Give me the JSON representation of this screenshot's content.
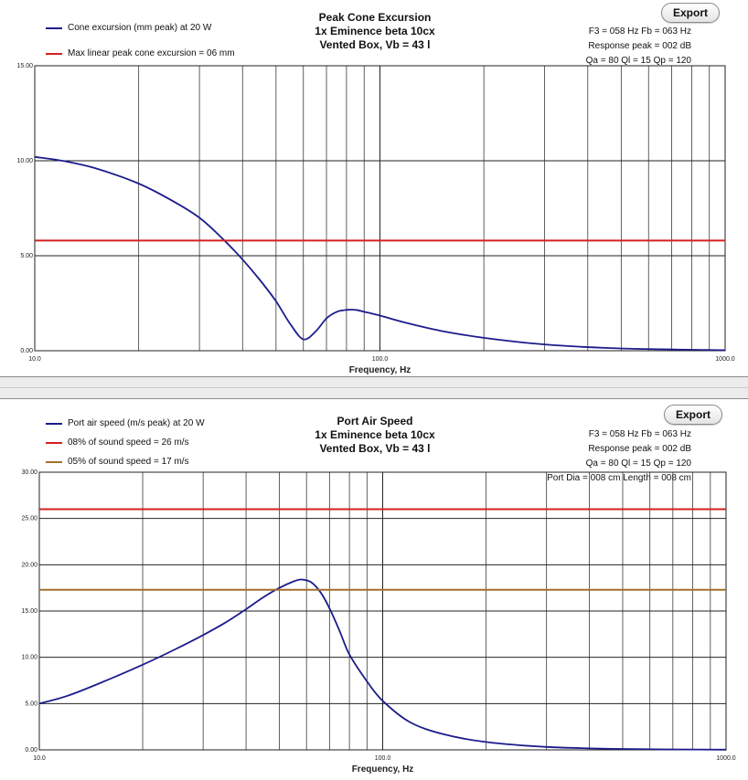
{
  "panels": [
    {
      "export_label": "Export",
      "legend": [
        {
          "text": "Cone excursion (mm peak) at 20 W",
          "color": "#1c1c8c"
        },
        {
          "text": "Max linear peak cone excursion = 06 mm",
          "color": "#d42020"
        }
      ],
      "titles": [
        "Peak Cone Excursion",
        "1x Eminence beta 10cx",
        "Vented Box, Vb = 43 l"
      ],
      "info": [
        "F3 = 058 Hz  Fb = 063 Hz",
        "Response peak = 002 dB",
        "Qa = 80  Ql = 15  Qp = 120"
      ],
      "xlabel": "Frequency, Hz"
    },
    {
      "export_label": "Export",
      "legend": [
        {
          "text": "Port air speed (m/s peak) at 20 W",
          "color": "#1c1c8c"
        },
        {
          "text": "08% of sound speed = 26 m/s",
          "color": "#d42020"
        },
        {
          "text": "05% of sound speed = 17 m/s",
          "color": "#a0702a"
        }
      ],
      "titles": [
        "Port Air Speed",
        "1x Eminence beta 10cx",
        "Vented Box, Vb = 43 l"
      ],
      "info": [
        "F3 = 058 Hz  Fb = 063 Hz",
        "Response peak = 002 dB",
        "Qa = 80  Ql = 15  Qp = 120",
        "Port Dia = 008 cm  Length = 008 cm"
      ],
      "xlabel": "Frequency, Hz"
    }
  ],
  "chart_data": [
    {
      "type": "line",
      "title": "Peak Cone Excursion",
      "xlabel": "Frequency, Hz",
      "ylabel": "",
      "x_scale": "log",
      "xlim": [
        10,
        1000
      ],
      "ylim": [
        0,
        15
      ],
      "x_ticks": [
        "10.0",
        "100.0",
        "1000.0"
      ],
      "y_ticks": [
        "0.00",
        "5.00",
        "10.00",
        "15.00"
      ],
      "grid": true,
      "legend_position": "top-left",
      "series": [
        {
          "name": "Cone excursion (mm peak) at 20 W",
          "color": "#1c1c8c",
          "x": [
            10,
            12,
            15,
            20,
            25,
            30,
            35,
            40,
            45,
            50,
            55,
            60,
            65,
            70,
            75,
            80,
            85,
            90,
            100,
            120,
            150,
            200,
            300,
            500,
            1000
          ],
          "y": [
            10.2,
            10.0,
            9.6,
            8.8,
            7.9,
            7.0,
            5.9,
            4.8,
            3.7,
            2.6,
            1.4,
            0.6,
            1.0,
            1.7,
            2.05,
            2.15,
            2.15,
            2.05,
            1.85,
            1.45,
            1.05,
            0.68,
            0.33,
            0.12,
            0.03
          ]
        },
        {
          "name": "Max linear peak cone excursion = 06 mm",
          "color": "#d42020",
          "x": [
            10,
            1000
          ],
          "y": [
            5.8,
            5.8
          ]
        }
      ]
    },
    {
      "type": "line",
      "title": "Port Air Speed",
      "xlabel": "Frequency, Hz",
      "ylabel": "",
      "x_scale": "log",
      "xlim": [
        10,
        1000
      ],
      "ylim": [
        0,
        30
      ],
      "x_ticks": [
        "10.0",
        "100.0",
        "1000.0"
      ],
      "y_ticks": [
        "0.00",
        "5.00",
        "10.00",
        "15.00",
        "20.00",
        "25.00",
        "30.00"
      ],
      "grid": true,
      "legend_position": "top-left",
      "series": [
        {
          "name": "Port air speed (m/s peak) at 20 W",
          "color": "#1c1c8c",
          "x": [
            10,
            12,
            15,
            20,
            25,
            30,
            35,
            40,
            45,
            50,
            55,
            58,
            62,
            66,
            70,
            75,
            80,
            90,
            100,
            120,
            150,
            200,
            300,
            500,
            1000
          ],
          "y": [
            5.0,
            5.8,
            7.2,
            9.2,
            10.9,
            12.4,
            13.8,
            15.2,
            16.5,
            17.5,
            18.2,
            18.4,
            18.1,
            17.0,
            15.3,
            12.8,
            10.3,
            7.4,
            5.3,
            3.0,
            1.7,
            0.85,
            0.32,
            0.1,
            0.02
          ]
        },
        {
          "name": "08% of sound speed = 26 m/s",
          "color": "#d42020",
          "x": [
            10,
            1000
          ],
          "y": [
            26,
            26
          ]
        },
        {
          "name": "05% of sound speed = 17 m/s",
          "color": "#a0702a",
          "x": [
            10,
            1000
          ],
          "y": [
            17.3,
            17.3
          ]
        }
      ]
    }
  ]
}
